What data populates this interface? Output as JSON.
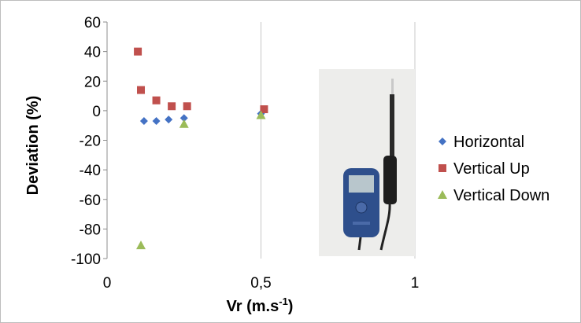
{
  "chart_data": {
    "type": "scatter",
    "title": "",
    "xlabel": "Vr (m.s",
    "xlabel_sup": "-1",
    "xlabel_suffix": ")",
    "ylabel": "Deviation (%)",
    "xlim": [
      0,
      1
    ],
    "ylim": [
      -100,
      60
    ],
    "x_ticks": [
      0,
      0.5,
      1
    ],
    "x_tick_labels": [
      "0",
      "0,5",
      "1"
    ],
    "y_ticks": [
      60,
      40,
      20,
      0,
      -20,
      -40,
      -60,
      -80,
      -100
    ],
    "y_tick_labels": [
      "60",
      "40",
      "20",
      "0",
      "-20",
      "-40",
      "-60",
      "-80",
      "-100"
    ],
    "grid": "vertical",
    "legend_position": "right",
    "series": [
      {
        "name": "Horizontal",
        "marker": "diamond",
        "color": "#4472c4",
        "points": [
          [
            0.12,
            -7
          ],
          [
            0.16,
            -7
          ],
          [
            0.2,
            -6
          ],
          [
            0.25,
            -5
          ],
          [
            0.5,
            -2
          ]
        ]
      },
      {
        "name": "Vertical Up",
        "marker": "square",
        "color": "#c0504d",
        "points": [
          [
            0.1,
            40
          ],
          [
            0.11,
            14
          ],
          [
            0.16,
            7
          ],
          [
            0.21,
            3
          ],
          [
            0.26,
            3
          ],
          [
            0.51,
            1
          ]
        ]
      },
      {
        "name": "Vertical Down",
        "marker": "triangle",
        "color": "#9bbb59",
        "points": [
          [
            0.11,
            -91
          ],
          [
            0.25,
            -9
          ],
          [
            0.5,
            -3
          ]
        ]
      }
    ]
  },
  "inset_photo": {
    "icon": "anemometer-photo",
    "background": "#ededeb",
    "device_color": "#2e4f8c",
    "probe_color": "#2a2a2a"
  }
}
